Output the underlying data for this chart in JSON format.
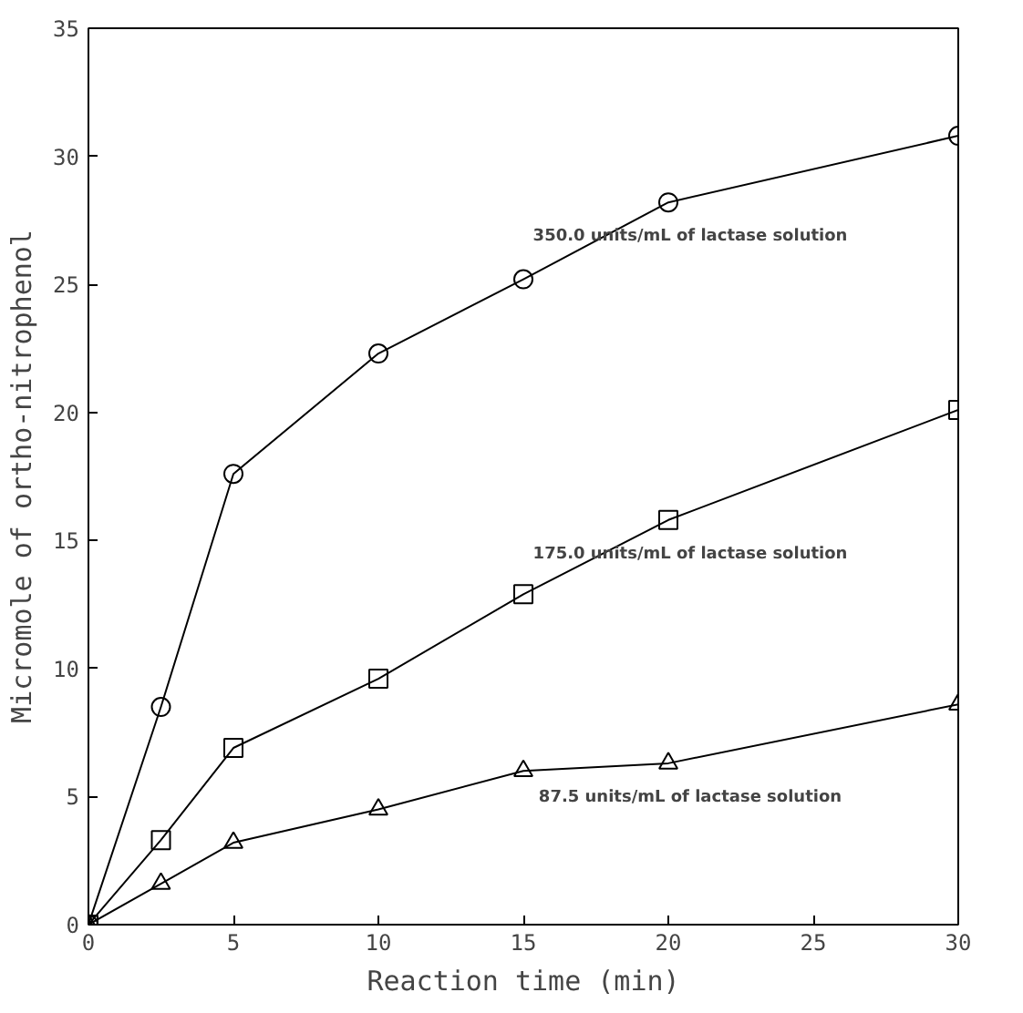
{
  "chart_data": {
    "type": "line",
    "xlabel": "Reaction time (min)",
    "ylabel": "Micromole of ortho-nitrophenol",
    "x": [
      0,
      2.5,
      5,
      10,
      15,
      20,
      30
    ],
    "series": [
      {
        "name": "350.0 units/mL of lactase solution",
        "color": "#000000",
        "marker": "circle",
        "values": [
          0,
          8.5,
          17.6,
          22.3,
          25.2,
          28.2,
          30.8
        ]
      },
      {
        "name": "175.0 units/mL of lactase solution",
        "color": "#000000",
        "marker": "square",
        "values": [
          0,
          3.3,
          6.9,
          9.6,
          12.9,
          15.8,
          20.1
        ]
      },
      {
        "name": "87.5 units/mL of lactase solution",
        "color": "#000000",
        "marker": "triangle",
        "values": [
          0,
          1.6,
          3.2,
          4.5,
          6.0,
          6.3,
          8.6
        ]
      }
    ],
    "xlim": [
      0,
      30
    ],
    "ylim": [
      0,
      35
    ],
    "xticks": [
      0,
      5,
      10,
      15,
      20,
      25,
      30
    ],
    "yticks": [
      0,
      5,
      10,
      15,
      20,
      25,
      30,
      35
    ],
    "grid": false,
    "line_style": "solid"
  }
}
